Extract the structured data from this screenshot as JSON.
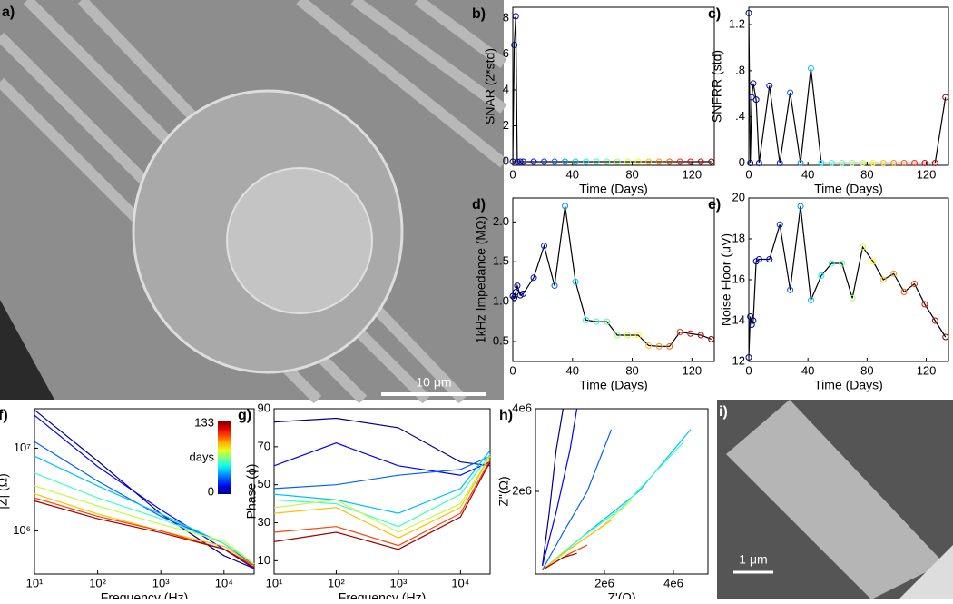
{
  "images": [
    {
      "panel_label": "a)",
      "scale_bar": "10 μm"
    },
    {
      "panel_label": "i)",
      "scale_bar": "1 μm"
    }
  ],
  "chart_data": [
    {
      "type": "line",
      "panel_label": "b)",
      "x_label": "Time (Days)",
      "y_label": "SNAR (2*std)",
      "line_color": "#000000",
      "marker_colormap": "jet",
      "color_range": [
        0,
        133
      ],
      "x": [
        0,
        1,
        2,
        3,
        5,
        7,
        14,
        21,
        28,
        35,
        42,
        49,
        56,
        63,
        70,
        77,
        84,
        91,
        98,
        105,
        112,
        119,
        126,
        133
      ],
      "values": [
        0,
        6.5,
        8.1,
        0,
        0,
        0,
        0,
        0,
        0,
        0,
        0,
        0,
        0,
        0,
        0,
        0,
        0,
        0,
        0,
        0,
        0,
        0,
        0,
        0
      ],
      "xlim": [
        0,
        135
      ],
      "xticks": [
        0,
        40,
        80,
        120
      ],
      "ylim": [
        -0.2,
        8.6
      ],
      "yticks": [
        0,
        2,
        4,
        6,
        8
      ]
    },
    {
      "type": "line",
      "panel_label": "c)",
      "x_label": "Time (Days)",
      "y_label": "SNFRR (std)",
      "line_color": "#000000",
      "marker_colormap": "jet",
      "color_range": [
        0,
        133
      ],
      "x": [
        0,
        1,
        2,
        3,
        5,
        7,
        14,
        21,
        28,
        35,
        42,
        49,
        56,
        63,
        70,
        77,
        84,
        91,
        98,
        105,
        112,
        119,
        126,
        133
      ],
      "values": [
        1.3,
        0,
        0.57,
        0.69,
        0.55,
        0,
        0.67,
        0,
        0.61,
        0,
        0.82,
        0,
        0,
        0,
        0,
        0,
        0,
        0,
        0,
        0,
        0,
        0,
        0,
        0.57
      ],
      "xlim": [
        0,
        135
      ],
      "xticks": [
        0,
        40,
        80,
        120
      ],
      "ylim": [
        -0.02,
        1.35
      ],
      "yticks": [
        0,
        {
          "value": 0.4,
          "label": ".4"
        },
        {
          "value": 0.8,
          "label": ".8"
        },
        1.2
      ]
    },
    {
      "type": "line",
      "panel_label": "d)",
      "x_label": "Time (Days)",
      "y_label": "1kHz Impedance (MΩ)",
      "line_color": "#000000",
      "marker_colormap": "jet",
      "color_range": [
        0,
        133
      ],
      "x": [
        0,
        1,
        2,
        3,
        5,
        7,
        14,
        21,
        28,
        35,
        42,
        49,
        56,
        63,
        70,
        77,
        84,
        91,
        98,
        105,
        112,
        119,
        126,
        133
      ],
      "values": [
        1.07,
        1.05,
        1.12,
        1.2,
        1.08,
        1.1,
        1.3,
        1.7,
        1.2,
        2.2,
        1.25,
        0.77,
        0.75,
        0.75,
        0.58,
        0.58,
        0.58,
        0.45,
        0.44,
        0.44,
        0.62,
        0.6,
        0.58,
        0.53
      ],
      "xlim": [
        0,
        135
      ],
      "xticks": [
        0,
        40,
        80,
        120
      ],
      "ylim": [
        0.25,
        2.3
      ],
      "yticks": [
        0.5,
        {
          "value": 1,
          "label": "1.0"
        },
        1.5,
        {
          "value": 2,
          "label": "2.0"
        }
      ]
    },
    {
      "type": "line",
      "panel_label": "e)",
      "x_label": "Time (Days)",
      "y_label": "Noise Floor (μV)",
      "line_color": "#000000",
      "marker_colormap": "jet",
      "color_range": [
        0,
        133
      ],
      "x": [
        0,
        1,
        2,
        3,
        5,
        7,
        14,
        21,
        28,
        35,
        42,
        49,
        56,
        63,
        70,
        77,
        84,
        91,
        98,
        105,
        112,
        119,
        126,
        133
      ],
      "values": [
        12.2,
        14.2,
        13.8,
        14.0,
        16.9,
        17.0,
        17.0,
        18.7,
        15.5,
        19.6,
        15.0,
        16.2,
        16.8,
        16.8,
        15.1,
        17.6,
        16.9,
        16.0,
        16.3,
        15.4,
        15.8,
        14.8,
        14.0,
        13.2
      ],
      "xlim": [
        0,
        135
      ],
      "xticks": [
        0,
        40,
        80,
        120
      ],
      "ylim": [
        12,
        20
      ],
      "yticks": [
        12,
        14,
        16,
        18,
        20
      ]
    },
    {
      "type": "line",
      "panel_label": "f)",
      "x_label": "Frequency (Hz)",
      "y_label": "|Z| (Ω)",
      "xscale": "log",
      "yscale": "log",
      "x": [
        10,
        100,
        1000,
        10000,
        30000
      ],
      "series": [
        {
          "color": "#00008b",
          "values": [
            29000000,
            7000000,
            1600000,
            500000,
            350000
          ]
        },
        {
          "color": "#0000ff",
          "values": [
            25000000,
            6000000,
            1800000,
            600000,
            350000
          ]
        },
        {
          "color": "#0060ff",
          "values": [
            12000000,
            4000000,
            1500000,
            700000,
            380000
          ]
        },
        {
          "color": "#00c0ff",
          "values": [
            8000000,
            3500000,
            1600000,
            700000,
            400000
          ]
        },
        {
          "color": "#40ffc0",
          "values": [
            5000000,
            2500000,
            1400000,
            700000,
            400000
          ]
        },
        {
          "color": "#c0ff40",
          "values": [
            3500000,
            2000000,
            1200000,
            750000,
            400000
          ]
        },
        {
          "color": "#ffc000",
          "values": [
            2800000,
            1600000,
            1000000,
            650000,
            380000
          ]
        },
        {
          "color": "#ff4000",
          "values": [
            2500000,
            1500000,
            1000000,
            600000,
            380000
          ]
        },
        {
          "color": "#a00000",
          "values": [
            2300000,
            1400000,
            950000,
            600000,
            360000
          ]
        }
      ],
      "xlim": [
        10,
        30000
      ],
      "xticks": [
        {
          "value": 10,
          "label": "10¹"
        },
        {
          "value": 100,
          "label": "10²"
        },
        {
          "value": 1000,
          "label": "10³"
        },
        {
          "value": 10000,
          "label": "10⁴"
        }
      ],
      "ylim": [
        300000,
        30000000
      ],
      "yticks": [
        {
          "value": 1000000,
          "label": "10⁶"
        },
        {
          "value": 10000000,
          "label": "10⁷"
        }
      ],
      "colorbar": {
        "colormap": "jet",
        "ticks": [
          0,
          133
        ],
        "label": "days"
      }
    },
    {
      "type": "line",
      "panel_label": "g)",
      "x_label": "Frequency (Hz)",
      "y_label": "Phase (ϕ)",
      "xscale": "log",
      "x": [
        10,
        100,
        1000,
        10000,
        30000
      ],
      "series": [
        {
          "color": "#00008b",
          "values": [
            83,
            85,
            80,
            62,
            60
          ]
        },
        {
          "color": "#0000ff",
          "values": [
            60,
            72,
            60,
            55,
            62
          ]
        },
        {
          "color": "#0060ff",
          "values": [
            48,
            50,
            55,
            58,
            65
          ]
        },
        {
          "color": "#00c0ff",
          "values": [
            45,
            42,
            35,
            48,
            68
          ]
        },
        {
          "color": "#40ffc0",
          "values": [
            42,
            40,
            28,
            45,
            66
          ]
        },
        {
          "color": "#c0ff40",
          "values": [
            38,
            42,
            25,
            40,
            65
          ]
        },
        {
          "color": "#ffc000",
          "values": [
            35,
            38,
            22,
            38,
            65
          ]
        },
        {
          "color": "#ff4000",
          "values": [
            25,
            28,
            18,
            35,
            63
          ]
        },
        {
          "color": "#a00000",
          "values": [
            20,
            25,
            16,
            33,
            62
          ]
        }
      ],
      "xlim": [
        10,
        30000
      ],
      "xticks": [
        {
          "value": 10,
          "label": "10¹"
        },
        {
          "value": 100,
          "label": "10²"
        },
        {
          "value": 1000,
          "label": "10³"
        },
        {
          "value": 10000,
          "label": "10⁴"
        }
      ],
      "ylim": [
        3,
        90
      ],
      "yticks": [
        10,
        30,
        50,
        70,
        90
      ]
    },
    {
      "type": "line",
      "panel_label": "h)",
      "x_label": "Z'(Ω)",
      "y_label": "Z\"(Ω)",
      "series": [
        {
          "color": "#00008b",
          "x": [
            200000,
            400000,
            600000,
            800000
          ],
          "values": [
            200000,
            1500000,
            3000000,
            4000000
          ]
        },
        {
          "color": "#0000ff",
          "x": [
            200000,
            600000,
            1000000,
            1200000
          ],
          "values": [
            200000,
            1500000,
            3000000,
            4000000
          ]
        },
        {
          "color": "#0060ff",
          "x": [
            200000,
            800000,
            1500000,
            2200000
          ],
          "values": [
            100000,
            1000000,
            2000000,
            3500000
          ]
        },
        {
          "color": "#00c0ff",
          "x": [
            200000,
            1500000,
            3000000,
            4500000
          ],
          "values": [
            100000,
            1000000,
            2000000,
            3500000
          ]
        },
        {
          "color": "#40ffc0",
          "x": [
            200000,
            1200000,
            2500000,
            4300000
          ],
          "values": [
            100000,
            800000,
            1600000,
            3200000
          ]
        },
        {
          "color": "#c0ff40",
          "x": [
            200000,
            1000000,
            2000000,
            2800000
          ],
          "values": [
            100000,
            600000,
            1200000,
            1800000
          ]
        },
        {
          "color": "#ffc000",
          "x": [
            200000,
            800000,
            1500000,
            2200000
          ],
          "values": [
            100000,
            500000,
            900000,
            1300000
          ]
        },
        {
          "color": "#ff4000",
          "x": [
            200000,
            600000,
            1000000,
            1500000
          ],
          "values": [
            100000,
            300000,
            500000,
            700000
          ]
        },
        {
          "color": "#a00000",
          "x": [
            200000,
            500000,
            800000,
            1200000
          ],
          "values": [
            100000,
            250000,
            400000,
            500000
          ]
        }
      ],
      "xlim": [
        0,
        5000000
      ],
      "xticks": [
        {
          "value": 2000000,
          "label": "2e6"
        },
        {
          "value": 4000000,
          "label": "4e6"
        }
      ],
      "ylim": [
        0,
        4000000
      ],
      "yticks": [
        {
          "value": 2000000,
          "label": "2e6"
        },
        {
          "value": 4000000,
          "label": "4e6"
        }
      ]
    }
  ]
}
